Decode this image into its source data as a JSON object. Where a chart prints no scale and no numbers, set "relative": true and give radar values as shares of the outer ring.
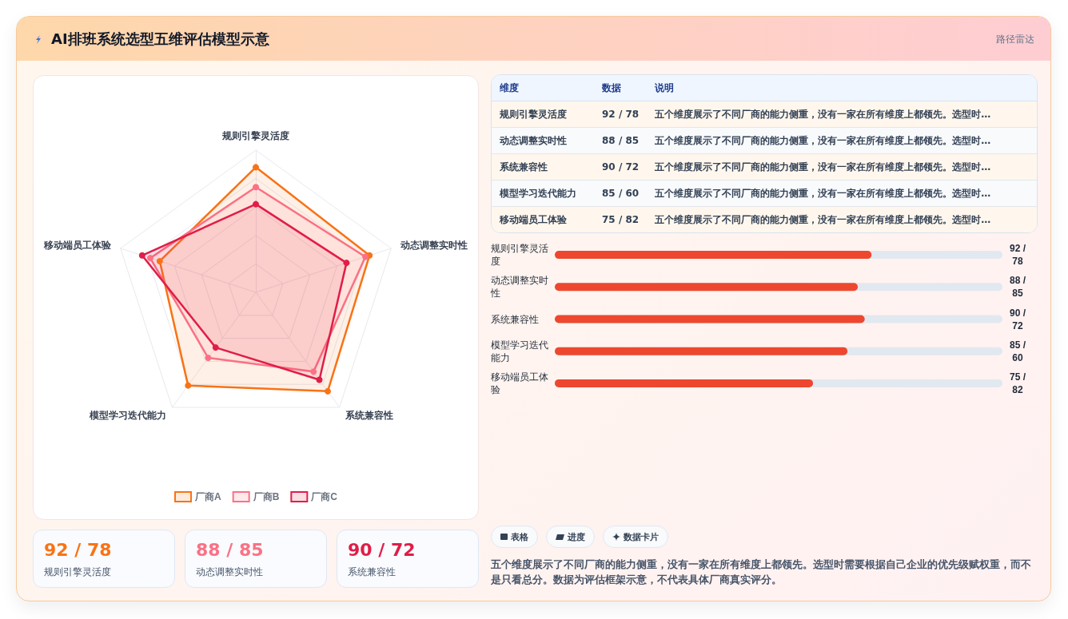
{
  "chart_data": [
    {
      "type": "radar",
      "title": "AI排班系统选型五维评估模型示意",
      "annotations": [
        "路径雷达"
      ],
      "categories": [
        "规则引擎灵活度",
        "动态调整实时性",
        "系统兼容性",
        "模型学习迭代能力",
        "移动端员工体验"
      ],
      "relative": true,
      "series": [
        {
          "name": "厂商A",
          "color": "#f97316",
          "values": [
            0.88,
            0.84,
            0.86,
            0.81,
            0.71
          ]
        },
        {
          "name": "厂商B",
          "color": "#fb7185",
          "values": [
            0.74,
            0.81,
            0.69,
            0.57,
            0.78
          ]
        },
        {
          "name": "厂商C",
          "color": "#e11d48",
          "values": [
            0.62,
            0.67,
            0.76,
            0.48,
            0.84
          ]
        }
      ],
      "marker": "circle",
      "grid": true,
      "legend": "bottom"
    },
    {
      "type": "other",
      "categories": [
        "维度",
        "数据",
        "说明"
      ],
      "cell_labels": [
        [
          "规则引擎灵活度",
          "92 / 78",
          "五个维度展示了不同厂商的能力侧重，没有一家在所有维度上都领先。选型时…"
        ],
        [
          "动态调整实时性",
          "88 / 85",
          "五个维度展示了不同厂商的能力侧重，没有一家在所有维度上都领先。选型时…"
        ],
        [
          "系统兼容性",
          "90 / 72",
          "五个维度展示了不同厂商的能力侧重，没有一家在所有维度上都领先。选型时…"
        ],
        [
          "模型学习迭代能力",
          "85 / 60",
          "五个维度展示了不同厂商的能力侧重，没有一家在所有维度上都领先。选型时…"
        ],
        [
          "移动端员工体验",
          "75 / 82",
          "五个维度展示了不同厂商的能力侧重，没有一家在所有维度上都领先。选型时…"
        ]
      ]
    },
    {
      "type": "bar",
      "orientation": "horizontal",
      "categories": [
        "规则引擎灵活度",
        "动态调整实时性",
        "系统兼容性",
        "模型学习迭代能力",
        "移动端员工体验"
      ],
      "values": [
        92,
        88,
        90,
        85,
        75
      ],
      "value_labels": [
        "92 / 78",
        "88 / 85",
        "90 / 72",
        "85 / 60",
        "75 / 82"
      ],
      "color": "#ed482f",
      "xlim": [
        0,
        130
      ],
      "tick_labels": "y"
    },
    {
      "type": "other",
      "categories": [
        "规则引擎灵活度",
        "动态调整实时性",
        "系统兼容性"
      ],
      "value_labels": [
        "92 / 78",
        "88 / 85",
        "90 / 72"
      ]
    },
    {
      "type": "other",
      "categories": [
        "表格",
        "进度",
        "数据卡片"
      ],
      "annotations": [
        "五个维度展示了不同厂商的能力侧重，没有一家在所有维度上都领先。选型时需要根据自己企业的优先级赋权重，而不是只看总分。数据为评估框架示意，不代表具体厂商真实评分。"
      ]
    }
  ]
}
